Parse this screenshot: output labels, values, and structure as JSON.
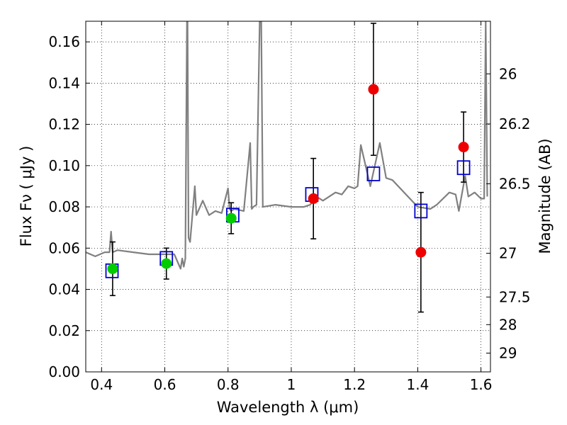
{
  "chart_data": {
    "type": "scatter",
    "title": "",
    "xlabel": "Wavelength  λ (μm)",
    "ylabel": "Flux  Fν  ( μJy )",
    "ylabel_right": "Magnitude (AB)",
    "xlim": [
      0.35,
      1.63
    ],
    "ylim": [
      0,
      0.17
    ],
    "grid": true,
    "x_ticks": [
      0.4,
      0.6,
      0.8,
      1.0,
      1.2,
      1.4,
      1.6
    ],
    "x_tick_labels": [
      "0.4",
      "0.6",
      "0.8",
      "1",
      "1.2",
      "1.4",
      "1.6"
    ],
    "y_ticks": [
      0.0,
      0.02,
      0.04,
      0.06,
      0.08,
      0.1,
      0.12,
      0.14,
      0.16
    ],
    "y_tick_labels": [
      "0.00",
      "0.02",
      "0.04",
      "0.06",
      "0.08",
      "0.10",
      "0.12",
      "0.14",
      "0.16"
    ],
    "right_axis_ticks": [
      {
        "label": "26",
        "flux": 0.1445
      },
      {
        "label": "26.2",
        "flux": 0.1202
      },
      {
        "label": "26.5",
        "flux": 0.0912
      },
      {
        "label": "27",
        "flux": 0.0575
      },
      {
        "label": "27.5",
        "flux": 0.0363
      },
      {
        "label": "28",
        "flux": 0.0229
      },
      {
        "label": "29",
        "flux": 0.0091
      }
    ],
    "series": [
      {
        "role": "model spectrum",
        "color": "#808080",
        "x": [
          0.35,
          0.38,
          0.41,
          0.425,
          0.43,
          0.435,
          0.45,
          0.5,
          0.55,
          0.6,
          0.63,
          0.65,
          0.655,
          0.66,
          0.665,
          0.67,
          0.672,
          0.675,
          0.68,
          0.69,
          0.695,
          0.7,
          0.72,
          0.74,
          0.76,
          0.78,
          0.8,
          0.805,
          0.81,
          0.82,
          0.85,
          0.87,
          0.875,
          0.88,
          0.89,
          0.9,
          0.905,
          0.91,
          0.95,
          1.0,
          1.04,
          1.06,
          1.08,
          1.1,
          1.14,
          1.16,
          1.18,
          1.2,
          1.21,
          1.22,
          1.25,
          1.28,
          1.3,
          1.3,
          1.32,
          1.4,
          1.44,
          1.46,
          1.5,
          1.52,
          1.53,
          1.55,
          1.56,
          1.58,
          1.6,
          1.61,
          1.615,
          1.62
        ],
        "y": [
          0.058,
          0.056,
          0.058,
          0.058,
          0.068,
          0.058,
          0.059,
          0.058,
          0.057,
          0.057,
          0.057,
          0.05,
          0.055,
          0.051,
          0.055,
          0.17,
          0.17,
          0.065,
          0.063,
          0.081,
          0.09,
          0.076,
          0.083,
          0.076,
          0.078,
          0.077,
          0.089,
          0.079,
          0.078,
          0.079,
          0.078,
          0.111,
          0.079,
          0.08,
          0.081,
          0.17,
          0.17,
          0.08,
          0.081,
          0.08,
          0.08,
          0.081,
          0.085,
          0.083,
          0.087,
          0.086,
          0.09,
          0.089,
          0.09,
          0.11,
          0.09,
          0.111,
          0.094,
          0.094,
          0.093,
          0.08,
          0.079,
          0.081,
          0.087,
          0.086,
          0.078,
          0.095,
          0.085,
          0.087,
          0.084,
          0.084,
          0.17,
          0.085
        ]
      },
      {
        "role": "model photometry",
        "marker": "open-square",
        "color": "#0000cc",
        "x": [
          0.433,
          0.605,
          0.815,
          1.065,
          1.26,
          1.41,
          1.545
        ],
        "y": [
          0.049,
          0.055,
          0.076,
          0.086,
          0.096,
          0.078,
          0.099
        ]
      },
      {
        "role": "measured flux (optical)",
        "marker": "filled-circle",
        "color": "#00cc00",
        "x": [
          0.435,
          0.605,
          0.81
        ],
        "y": [
          0.05,
          0.0525,
          0.0745
        ],
        "err": [
          0.013,
          0.0075,
          0.0075
        ]
      },
      {
        "role": "measured flux (near-IR)",
        "marker": "filled-circle",
        "color": "#ee0000",
        "x": [
          1.07,
          1.26,
          1.41,
          1.545
        ],
        "y": [
          0.084,
          0.137,
          0.058,
          0.109
        ],
        "err": [
          0.0195,
          0.032,
          0.029,
          0.017
        ]
      }
    ]
  }
}
